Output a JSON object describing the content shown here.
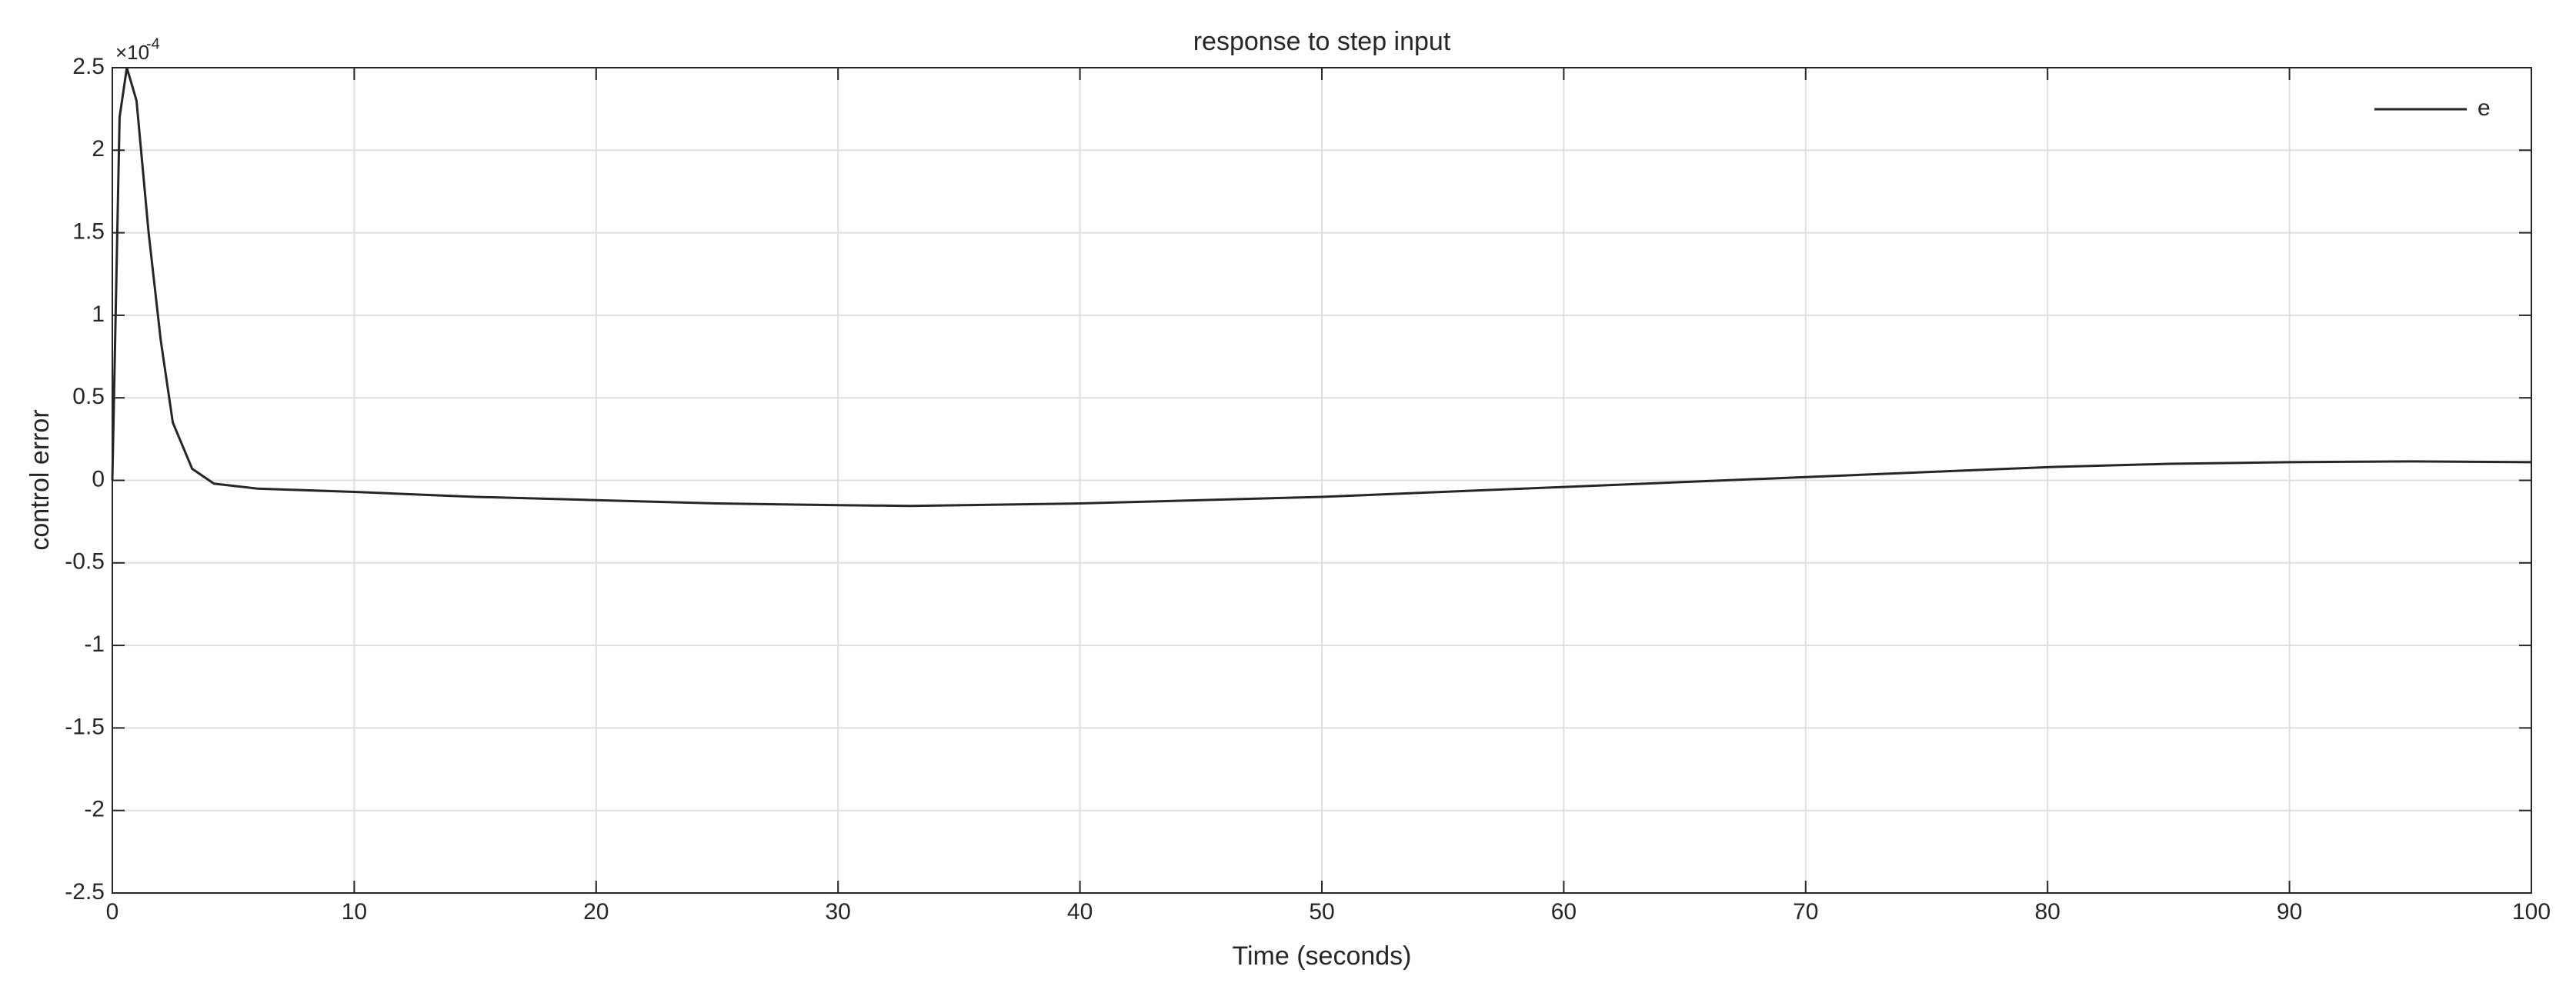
{
  "chart_data": {
    "type": "line",
    "title": "response to step input",
    "xlabel": "Time (seconds)",
    "ylabel": "control error",
    "y_exponent_base": "×10",
    "y_exponent": "-4",
    "x": [
      0,
      0.3,
      0.6,
      1,
      1.5,
      2,
      2.5,
      3.3,
      4.2,
      6,
      10,
      15,
      20,
      25,
      30,
      33,
      40,
      45,
      50,
      55,
      60,
      65,
      70,
      75,
      80,
      85,
      90,
      95,
      100
    ],
    "series": [
      {
        "name": "e",
        "color": "#262626",
        "values": [
          0,
          2.2,
          2.5,
          2.3,
          1.5,
          0.85,
          0.35,
          0.07,
          -0.02,
          -0.05,
          -0.07,
          -0.1,
          -0.12,
          -0.14,
          -0.15,
          -0.155,
          -0.14,
          -0.12,
          -0.1,
          -0.07,
          -0.04,
          -0.01,
          0.02,
          0.05,
          0.08,
          0.1,
          0.11,
          0.115,
          0.11
        ]
      }
    ],
    "xlim": [
      0,
      100
    ],
    "xticks": [
      0,
      10,
      20,
      30,
      40,
      50,
      60,
      70,
      80,
      90,
      100
    ],
    "ylim": [
      -2.5,
      2.5
    ],
    "yticks": [
      -2.5,
      -2,
      -1.5,
      -1,
      -0.5,
      0,
      0.5,
      1,
      1.5,
      2,
      2.5
    ],
    "grid": true,
    "legend": "northeast"
  }
}
